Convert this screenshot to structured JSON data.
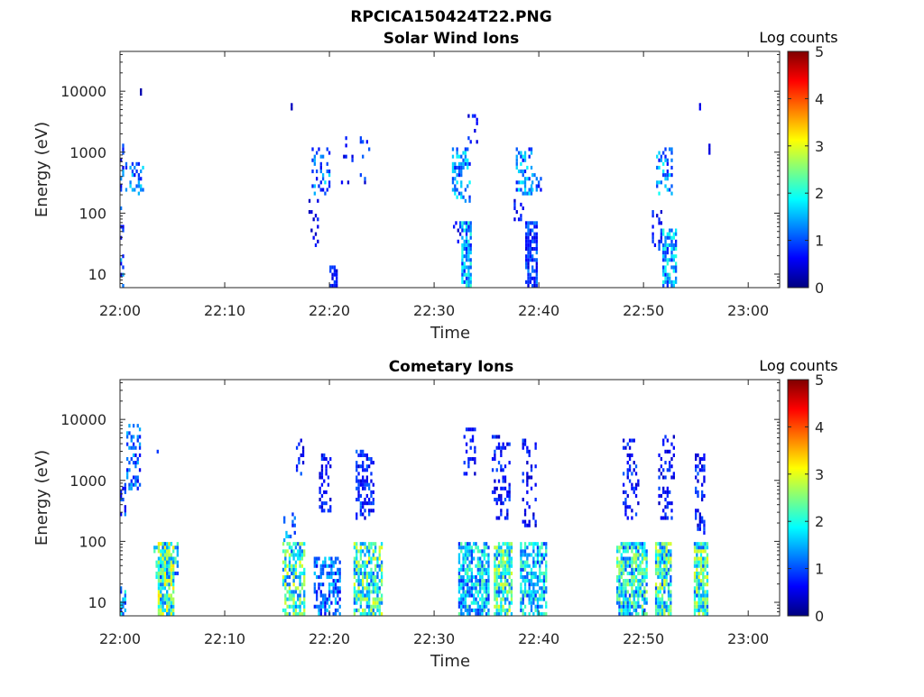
{
  "figure": {
    "title": "RPCICA150424T22.PNG"
  },
  "colormap": {
    "name": "jet",
    "stops": [
      "#00007f",
      "#0000ff",
      "#007fff",
      "#00ffff",
      "#7fff7f",
      "#ffff00",
      "#ff7f00",
      "#ff0000",
      "#7f0000"
    ]
  },
  "chart_data": [
    {
      "type": "heatmap",
      "title": "Solar Wind Ions",
      "xlabel": "Time",
      "ylabel": "Energy (eV)",
      "colorbar_label": "Log counts",
      "colorbar_ticks": [
        "0",
        "1",
        "2",
        "3",
        "4",
        "5"
      ],
      "clim": [
        0,
        5
      ],
      "xlim": [
        "22:00",
        "23:03"
      ],
      "x_ticks": [
        "22:00",
        "22:10",
        "22:20",
        "22:30",
        "22:40",
        "22:50",
        "23:00"
      ],
      "ylim": [
        6,
        45000
      ],
      "yscale": "log",
      "y_ticks": [
        "10",
        "100",
        "1000",
        "10000"
      ],
      "clusters": [
        {
          "t0": 0.0,
          "t1": 0.3,
          "e0": 6,
          "e1": 1300,
          "density": 0.3,
          "peak": 1.4
        },
        {
          "t0": 0.3,
          "t1": 2.2,
          "e0": 200,
          "e1": 650,
          "density": 0.3,
          "peak": 1.6
        },
        {
          "t0": 1.9,
          "t1": 2.1,
          "e0": 9500,
          "e1": 11000,
          "density": 1.0,
          "peak": 0.5
        },
        {
          "t0": 16.3,
          "t1": 16.5,
          "e0": 5000,
          "e1": 6000,
          "density": 1.0,
          "peak": 0.5
        },
        {
          "t0": 18.3,
          "t1": 20.0,
          "e0": 200,
          "e1": 1100,
          "density": 0.35,
          "peak": 1.6
        },
        {
          "t0": 18.0,
          "t1": 19.0,
          "e0": 25,
          "e1": 200,
          "density": 0.15,
          "peak": 0.8
        },
        {
          "t0": 20.0,
          "t1": 20.7,
          "e0": 6,
          "e1": 13,
          "density": 0.55,
          "peak": 0.9
        },
        {
          "t0": 21.1,
          "t1": 23.9,
          "e0": 300,
          "e1": 1700,
          "density": 0.15,
          "peak": 1.0
        },
        {
          "t0": 31.7,
          "t1": 33.5,
          "e0": 150,
          "e1": 1100,
          "density": 0.4,
          "peak": 1.8
        },
        {
          "t0": 31.8,
          "t1": 32.6,
          "e0": 25,
          "e1": 80,
          "density": 0.25,
          "peak": 1.0
        },
        {
          "t0": 32.6,
          "t1": 33.6,
          "e0": 6,
          "e1": 70,
          "density": 0.85,
          "peak": 2.0
        },
        {
          "t0": 33.2,
          "t1": 34.1,
          "e0": 1500,
          "e1": 4200,
          "density": 0.2,
          "peak": 0.9
        },
        {
          "t0": 37.8,
          "t1": 39.3,
          "e0": 200,
          "e1": 1100,
          "density": 0.45,
          "peak": 1.8
        },
        {
          "t0": 39.3,
          "t1": 40.3,
          "e0": 250,
          "e1": 400,
          "density": 0.5,
          "peak": 1.6
        },
        {
          "t0": 37.6,
          "t1": 38.7,
          "e0": 80,
          "e1": 160,
          "density": 0.3,
          "peak": 0.9
        },
        {
          "t0": 38.7,
          "t1": 39.9,
          "e0": 6,
          "e1": 70,
          "density": 0.75,
          "peak": 1.2
        },
        {
          "t0": 51.2,
          "t1": 52.8,
          "e0": 200,
          "e1": 1100,
          "density": 0.4,
          "peak": 1.8
        },
        {
          "t0": 50.8,
          "t1": 51.7,
          "e0": 25,
          "e1": 110,
          "density": 0.3,
          "peak": 1.0
        },
        {
          "t0": 51.8,
          "t1": 53.1,
          "e0": 6,
          "e1": 55,
          "density": 0.7,
          "peak": 2.0
        },
        {
          "t0": 55.3,
          "t1": 55.5,
          "e0": 5500,
          "e1": 6000,
          "density": 1.0,
          "peak": 0.6
        },
        {
          "t0": 56.2,
          "t1": 56.4,
          "e0": 1000,
          "e1": 1200,
          "density": 1.0,
          "peak": 0.6
        }
      ]
    },
    {
      "type": "heatmap",
      "title": "Cometary Ions",
      "xlabel": "Time",
      "ylabel": "Energy (eV)",
      "colorbar_label": "Log counts",
      "colorbar_ticks": [
        "0",
        "1",
        "2",
        "3",
        "4",
        "5"
      ],
      "clim": [
        0,
        5
      ],
      "xlim": [
        "22:00",
        "23:03"
      ],
      "x_ticks": [
        "22:00",
        "22:10",
        "22:20",
        "22:30",
        "22:40",
        "22:50",
        "23:00"
      ],
      "ylim": [
        6,
        45000
      ],
      "yscale": "log",
      "y_ticks": [
        "10",
        "100",
        "1000",
        "10000"
      ],
      "clusters": [
        {
          "t0": 0.0,
          "t1": 0.5,
          "e0": 6,
          "e1": 18,
          "density": 0.7,
          "peak": 2.2
        },
        {
          "t0": 0.0,
          "t1": 0.6,
          "e0": 200,
          "e1": 800,
          "density": 0.4,
          "peak": 1.2
        },
        {
          "t0": 0.6,
          "t1": 1.9,
          "e0": 700,
          "e1": 7500,
          "density": 0.4,
          "peak": 1.5
        },
        {
          "t0": 3.3,
          "t1": 3.7,
          "e0": 3000,
          "e1": 4200,
          "density": 0.6,
          "peak": 0.8
        },
        {
          "t0": 3.2,
          "t1": 5.6,
          "e0": 25,
          "e1": 95,
          "density": 0.55,
          "peak": 2.2
        },
        {
          "t0": 3.6,
          "t1": 5.1,
          "e0": 6,
          "e1": 95,
          "density": 0.9,
          "peak": 3.0
        },
        {
          "t0": 15.5,
          "t1": 17.7,
          "e0": 6,
          "e1": 90,
          "density": 0.65,
          "peak": 2.8
        },
        {
          "t0": 15.6,
          "t1": 16.8,
          "e0": 100,
          "e1": 280,
          "density": 0.4,
          "peak": 1.6
        },
        {
          "t0": 16.8,
          "t1": 17.6,
          "e0": 1200,
          "e1": 4500,
          "density": 0.4,
          "peak": 1.0
        },
        {
          "t0": 18.5,
          "t1": 21.0,
          "e0": 6,
          "e1": 55,
          "density": 0.55,
          "peak": 1.6
        },
        {
          "t0": 19.0,
          "t1": 20.1,
          "e0": 300,
          "e1": 2500,
          "density": 0.35,
          "peak": 0.9
        },
        {
          "t0": 22.3,
          "t1": 25.1,
          "e0": 6,
          "e1": 90,
          "density": 0.75,
          "peak": 2.8
        },
        {
          "t0": 22.5,
          "t1": 24.3,
          "e0": 250,
          "e1": 3000,
          "density": 0.4,
          "peak": 1.1
        },
        {
          "t0": 32.3,
          "t1": 35.2,
          "e0": 6,
          "e1": 90,
          "density": 0.75,
          "peak": 2.2
        },
        {
          "t0": 32.8,
          "t1": 33.9,
          "e0": 1200,
          "e1": 6500,
          "density": 0.3,
          "peak": 0.9
        },
        {
          "t0": 35.7,
          "t1": 37.5,
          "e0": 6,
          "e1": 90,
          "density": 0.8,
          "peak": 2.8
        },
        {
          "t0": 35.5,
          "t1": 37.2,
          "e0": 250,
          "e1": 5500,
          "density": 0.35,
          "peak": 1.0
        },
        {
          "t0": 38.2,
          "t1": 40.7,
          "e0": 6,
          "e1": 90,
          "density": 0.7,
          "peak": 2.2
        },
        {
          "t0": 38.4,
          "t1": 39.8,
          "e0": 180,
          "e1": 4500,
          "density": 0.25,
          "peak": 0.9
        },
        {
          "t0": 47.4,
          "t1": 50.3,
          "e0": 6,
          "e1": 90,
          "density": 0.75,
          "peak": 2.6
        },
        {
          "t0": 48.0,
          "t1": 49.6,
          "e0": 250,
          "e1": 4500,
          "density": 0.3,
          "peak": 1.0
        },
        {
          "t0": 51.1,
          "t1": 52.7,
          "e0": 6,
          "e1": 90,
          "density": 0.8,
          "peak": 2.8
        },
        {
          "t0": 51.4,
          "t1": 52.9,
          "e0": 250,
          "e1": 5500,
          "density": 0.3,
          "peak": 0.9
        },
        {
          "t0": 54.8,
          "t1": 56.1,
          "e0": 6,
          "e1": 90,
          "density": 0.85,
          "peak": 2.8
        },
        {
          "t0": 54.9,
          "t1": 55.9,
          "e0": 140,
          "e1": 2500,
          "density": 0.4,
          "peak": 1.0
        }
      ]
    }
  ]
}
